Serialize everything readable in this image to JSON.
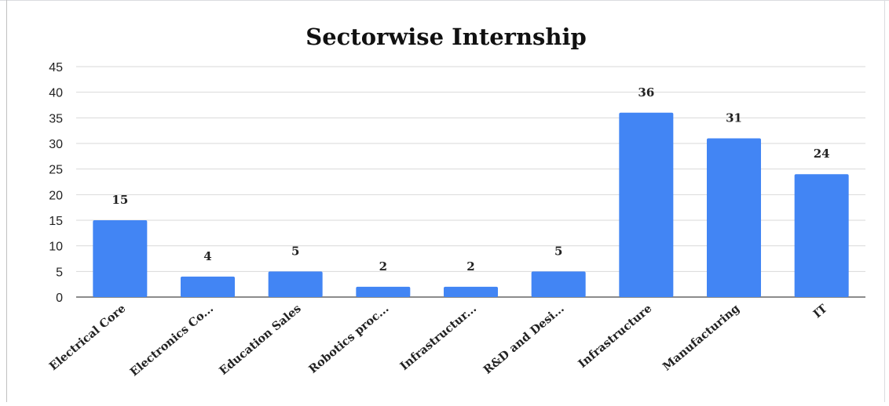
{
  "chart_data": {
    "type": "bar",
    "title": "Sectorwise Internship",
    "xlabel": "",
    "ylabel": "",
    "categories": [
      "Electrical Core",
      "Electronics Co...",
      "Education Sales",
      "Robotics proc...",
      "Infrastructur...",
      "R&D and Desi...",
      "Infrastructure",
      "Manufacturing",
      "IT"
    ],
    "values": [
      15,
      4,
      5,
      2,
      2,
      5,
      36,
      31,
      24
    ],
    "data_labels": [
      "15",
      "4",
      "5",
      "2",
      "2",
      "5",
      "36",
      "31",
      "24"
    ],
    "ylim": [
      0,
      45
    ],
    "yticks": [
      "0",
      "5",
      "10",
      "15",
      "20",
      "25",
      "30",
      "35",
      "40",
      "45"
    ],
    "grid": true,
    "legend": "none",
    "bar_color": "#4285f4"
  }
}
